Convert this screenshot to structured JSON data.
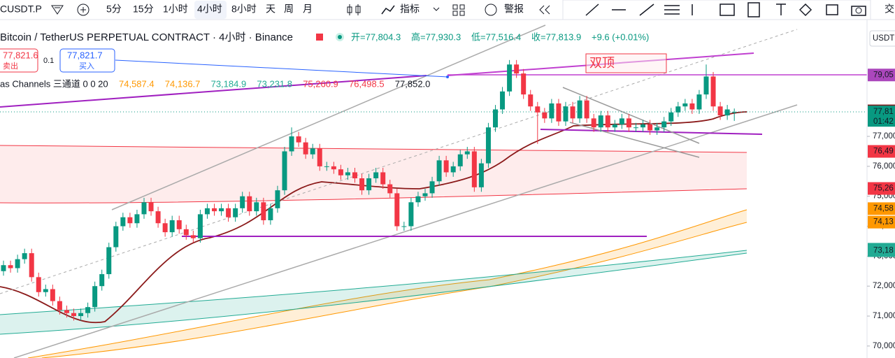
{
  "toolbar": {
    "symbol": "CUSDT.P",
    "intervals": [
      "5分",
      "15分",
      "1小时",
      "4小时",
      "8小时",
      "天",
      "周",
      "月"
    ],
    "indicators": "指标",
    "alert": "警报",
    "trade": "交"
  },
  "header": {
    "title": "Bitcoin / TetherUS PERPETUAL CONTRACT · 4小时 · Binance",
    "open": "开=77,804.3",
    "high": "高=77,930.3",
    "low": "低=77,516.4",
    "close": "收=77,813.9",
    "change": "+9.6 (+0.01%)"
  },
  "order": {
    "sell_price": "77,821.6",
    "sell": "卖出",
    "spread": "0.1",
    "buy_price": "77,821.7",
    "buy": "买入"
  },
  "indicator": {
    "name": "as Channels 三通道 0 0 20",
    "values": [
      "74,587.4",
      "74,136.7",
      "73,184.9",
      "73,231.8",
      "75,260.9",
      "76,498.5",
      "77,852.0"
    ]
  },
  "annotation": "双顶",
  "chart": {
    "type": "candlestick",
    "currency": "USDT",
    "ylim": [
      69600,
      80900
    ],
    "yticks": [
      {
        "value": 70000,
        "label": "70,000"
      },
      {
        "value": 71000,
        "label": "71,000"
      },
      {
        "value": 72000,
        "label": "72,000"
      },
      {
        "value": 73000,
        "label": "73,000"
      },
      {
        "value": 74000,
        "label": "74,000"
      },
      {
        "value": 75000,
        "label": "75,000"
      },
      {
        "value": 76000,
        "label": "76,000"
      },
      {
        "value": 77000,
        "label": "77,000"
      }
    ],
    "price_tags": [
      {
        "value": 79050,
        "label": "79,05",
        "color": "#ab47bc"
      },
      {
        "value": 77852,
        "label": "77,85",
        "color": "#7b1e1e"
      },
      {
        "value": 77813.9,
        "label": "77,81",
        "color": "#089981"
      },
      {
        "value": 76498.5,
        "label": "76,49",
        "color": "#f23645"
      },
      {
        "value": 75260.9,
        "label": "75,26",
        "color": "#f23645"
      },
      {
        "value": 74587.4,
        "label": "74,58",
        "color": "#ff9800"
      },
      {
        "value": 74136.7,
        "label": "74,13",
        "color": "#ff9800"
      },
      {
        "value": 73231.8,
        "label": "73,23",
        "color": "#22ab94"
      },
      {
        "value": 73184.9,
        "label": "73,18",
        "color": "#22ab94"
      }
    ],
    "countdown": "01:42",
    "up_color": "#089981",
    "down_color": "#f23645",
    "candles": [
      [
        72500,
        72850,
        72350,
        72700
      ],
      [
        72700,
        72850,
        72450,
        72600
      ],
      [
        72600,
        73050,
        72450,
        72900
      ],
      [
        72900,
        73250,
        72750,
        73100
      ],
      [
        73100,
        73250,
        72150,
        72300
      ],
      [
        72300,
        72450,
        71650,
        71800
      ],
      [
        71800,
        72050,
        71650,
        71900
      ],
      [
        71900,
        72050,
        71350,
        71500
      ],
      [
        71500,
        71650,
        71050,
        71200
      ],
      [
        71200,
        71350,
        70950,
        71100
      ],
      [
        71100,
        71250,
        70850,
        71000
      ],
      [
        71000,
        71250,
        70850,
        71100
      ],
      [
        71100,
        71450,
        70950,
        71300
      ],
      [
        71300,
        72150,
        71150,
        72000
      ],
      [
        72000,
        72550,
        71850,
        72400
      ],
      [
        72400,
        73450,
        72250,
        73300
      ],
      [
        73300,
        74150,
        73150,
        74000
      ],
      [
        74000,
        74450,
        73850,
        74300
      ],
      [
        74300,
        74450,
        73950,
        74100
      ],
      [
        74100,
        74550,
        73950,
        74400
      ],
      [
        74400,
        74950,
        74250,
        74800
      ],
      [
        74800,
        74950,
        74350,
        74500
      ],
      [
        74500,
        74650,
        73950,
        74100
      ],
      [
        74100,
        74250,
        73650,
        73800
      ],
      [
        73800,
        74350,
        73650,
        74200
      ],
      [
        74200,
        74350,
        73750,
        73900
      ],
      [
        73900,
        74050,
        73550,
        73700
      ],
      [
        73700,
        73850,
        73450,
        73600
      ],
      [
        73600,
        74550,
        73450,
        74400
      ],
      [
        74400,
        74750,
        74250,
        74600
      ],
      [
        74600,
        74750,
        74350,
        74500
      ],
      [
        74500,
        74750,
        74350,
        74600
      ],
      [
        74600,
        74750,
        74150,
        74300
      ],
      [
        74300,
        74750,
        74150,
        74600
      ],
      [
        74600,
        75150,
        74450,
        75000
      ],
      [
        75000,
        75150,
        74350,
        74500
      ],
      [
        74500,
        74950,
        74350,
        74800
      ],
      [
        74800,
        74950,
        74050,
        74200
      ],
      [
        74200,
        74750,
        74050,
        74600
      ],
      [
        74600,
        75350,
        74450,
        75200
      ],
      [
        75200,
        76650,
        75050,
        76500
      ],
      [
        76500,
        77300,
        76350,
        77000
      ],
      [
        77000,
        77150,
        76650,
        76800
      ],
      [
        76800,
        76950,
        76250,
        76400
      ],
      [
        76400,
        76750,
        76250,
        76600
      ],
      [
        76600,
        76750,
        75850,
        76000
      ],
      [
        76000,
        76150,
        75850,
        76000
      ],
      [
        76000,
        76150,
        75750,
        75900
      ],
      [
        75900,
        76050,
        75550,
        75700
      ],
      [
        75700,
        75950,
        75550,
        75800
      ],
      [
        75800,
        75950,
        75450,
        75600
      ],
      [
        75600,
        75750,
        75050,
        75200
      ],
      [
        75200,
        75750,
        75050,
        75600
      ],
      [
        75600,
        75950,
        75450,
        75800
      ],
      [
        75800,
        75950,
        75250,
        75400
      ],
      [
        75400,
        75550,
        74950,
        75100
      ],
      [
        75100,
        75250,
        73850,
        74000
      ],
      [
        74000,
        74150,
        73850,
        74000
      ],
      [
        74000,
        74950,
        73850,
        74800
      ],
      [
        74800,
        75150,
        74650,
        75000
      ],
      [
        75000,
        75250,
        74850,
        75100
      ],
      [
        75100,
        75650,
        74950,
        75500
      ],
      [
        75500,
        76350,
        75350,
        76200
      ],
      [
        76200,
        76350,
        75650,
        75800
      ],
      [
        75800,
        76150,
        75650,
        76000
      ],
      [
        76000,
        76550,
        75850,
        76400
      ],
      [
        76400,
        76650,
        76250,
        76500
      ],
      [
        76500,
        76650,
        75150,
        75300
      ],
      [
        75300,
        76250,
        75150,
        76100
      ],
      [
        76100,
        77450,
        75950,
        77300
      ],
      [
        77300,
        78050,
        77150,
        77900
      ],
      [
        77900,
        78650,
        77750,
        78500
      ],
      [
        78500,
        79550,
        78350,
        79400
      ],
      [
        79400,
        79550,
        78950,
        79100
      ],
      [
        79100,
        79250,
        78250,
        78400
      ],
      [
        78400,
        78550,
        77850,
        78000
      ],
      [
        78000,
        78150,
        76750,
        77800
      ],
      [
        77800,
        77950,
        77450,
        77600
      ],
      [
        77600,
        78250,
        77450,
        78100
      ],
      [
        78100,
        78250,
        77350,
        77500
      ],
      [
        77500,
        78150,
        77350,
        78000
      ],
      [
        78000,
        78150,
        77450,
        77600
      ],
      [
        77600,
        78350,
        77450,
        78200
      ],
      [
        78200,
        78350,
        77450,
        77600
      ],
      [
        77600,
        77750,
        77150,
        77300
      ],
      [
        77300,
        77850,
        77150,
        77700
      ],
      [
        77700,
        77850,
        77150,
        77300
      ],
      [
        77300,
        77550,
        77150,
        77400
      ],
      [
        77400,
        77750,
        77250,
        77600
      ],
      [
        77600,
        77750,
        77150,
        77300
      ],
      [
        77300,
        77450,
        77150,
        77300
      ],
      [
        77300,
        77550,
        77150,
        77400
      ],
      [
        77400,
        77550,
        77050,
        77200
      ],
      [
        77200,
        77450,
        77050,
        77300
      ],
      [
        77300,
        77650,
        77150,
        77500
      ],
      [
        77500,
        77950,
        77350,
        77800
      ],
      [
        77800,
        78150,
        77650,
        78000
      ],
      [
        78000,
        78250,
        77850,
        78100
      ],
      [
        78100,
        78250,
        77750,
        77900
      ],
      [
        77900,
        78550,
        77750,
        78400
      ],
      [
        78400,
        79400,
        78250,
        79000
      ],
      [
        79000,
        79150,
        77850,
        78000
      ],
      [
        78000,
        78150,
        77550,
        77700
      ],
      [
        77700,
        78050,
        77550,
        77900
      ],
      [
        77804.3,
        77930.3,
        77516.4,
        77813.9
      ]
    ]
  }
}
